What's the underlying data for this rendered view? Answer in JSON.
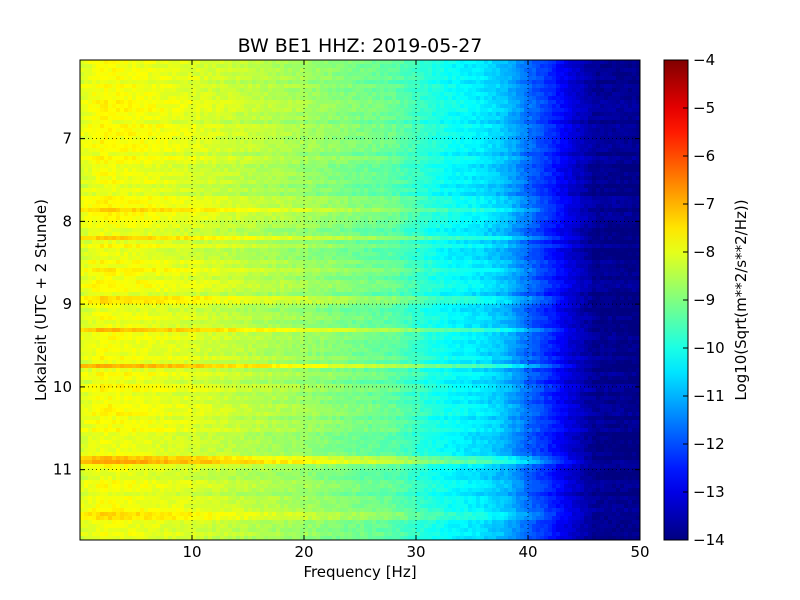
{
  "chart_data": {
    "type": "heatmap",
    "title": "BW BE1 HHZ: 2019-05-27",
    "xlabel": "Frequency [Hz]",
    "ylabel": "Lokalzeit (UTC + 2 Stunde)",
    "xlim": [
      0,
      50
    ],
    "ylim": [
      11.85,
      6.05
    ],
    "x_ticks": [
      "10",
      "20",
      "30",
      "40",
      "50"
    ],
    "x_tick_values": [
      10,
      20,
      30,
      40,
      50
    ],
    "y_ticks": [
      "7",
      "8",
      "9",
      "10",
      "11"
    ],
    "y_tick_values": [
      7,
      8,
      9,
      10,
      11
    ],
    "grid": true,
    "colorbar": {
      "label": "Log10(Sqrt(m**2/s**2/Hz))",
      "colormap": "jet",
      "range": [
        -14,
        -4
      ],
      "ticks": [
        "−4",
        "−5",
        "−6",
        "−7",
        "−8",
        "−9",
        "−10",
        "−11",
        "−12",
        "−13",
        "−14"
      ],
      "tick_values": [
        -4,
        -5,
        -6,
        -7,
        -8,
        -9,
        -10,
        -11,
        -12,
        -13,
        -14
      ]
    },
    "spectrum_profile": {
      "frequency": [
        0,
        2,
        5,
        10,
        15,
        20,
        25,
        28,
        31,
        33,
        36,
        38,
        40,
        42,
        44,
        46,
        50
      ],
      "value": [
        -8.1,
        -7.8,
        -7.9,
        -8.1,
        -8.4,
        -8.7,
        -9.1,
        -9.3,
        -9.9,
        -10.2,
        -10.5,
        -10.9,
        -11.7,
        -12.4,
        -13.2,
        -13.8,
        -13.9
      ]
    },
    "bands": [
      {
        "time": 7.87,
        "offset": 0.7
      },
      {
        "time": 8.21,
        "offset": 0.6
      },
      {
        "time": 8.58,
        "offset": 0.3
      },
      {
        "time": 8.96,
        "offset": 0.5
      },
      {
        "time": 9.3,
        "offset": 0.9
      },
      {
        "time": 9.75,
        "offset": 1.0
      },
      {
        "time": 10.88,
        "offset": 0.9
      },
      {
        "time": 11.55,
        "offset": 0.4
      }
    ]
  }
}
